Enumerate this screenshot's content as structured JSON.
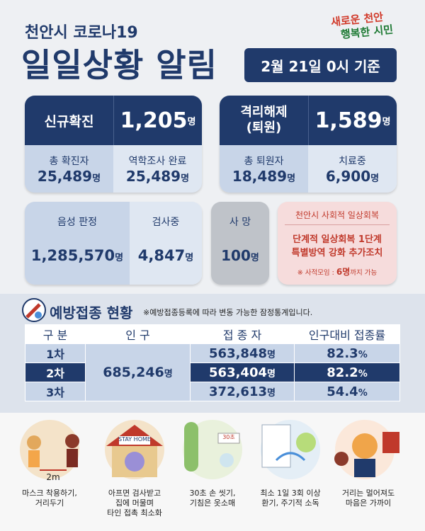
{
  "header": {
    "subtitle": "천안시 코로나19",
    "title": "일일상황 알림",
    "date": "2월 21일 0시 기준",
    "logo": [
      "새로운 천안",
      "행복한 시민"
    ]
  },
  "confirmed": {
    "label": "신규확진",
    "value": "1,205",
    "unit": "명",
    "total_label": "총 확진자",
    "total": "25,489",
    "total_unit": "명",
    "traced_label": "역학조사 완료",
    "traced": "25,489",
    "traced_unit": "명"
  },
  "released": {
    "label": [
      "격리해제",
      "(퇴원)"
    ],
    "value": "1,589",
    "unit": "명",
    "total_label": "총 퇴원자",
    "total": "18,489",
    "total_unit": "명",
    "treating_label": "치료중",
    "treating": "6,900",
    "treating_unit": "명"
  },
  "tests": {
    "negative_label": "음성 판정",
    "negative": "1,285,570",
    "negative_unit": "명",
    "pending_label": "검사중",
    "pending": "4,847",
    "pending_unit": "명"
  },
  "deaths": {
    "label": "사 망",
    "value": "100",
    "unit": "명"
  },
  "recovery": {
    "title": "천안시 사회적 일상회복",
    "lines": [
      "단계적 일상회복 1단계",
      "특별방역 강화 추가조치"
    ],
    "note_prefix": "※ 사적모임 : ",
    "note_number": "6명",
    "note_suffix": "까지 가능"
  },
  "vaccine": {
    "title": "예방접종 현황",
    "note": "※예방접종등록에 따라 변동 가능한 잠정통계입니다.",
    "table": {
      "header": [
        "구 분",
        "인 구",
        "접 종 자",
        "인구대비 접종률"
      ],
      "population": "685,246",
      "population_unit": "명",
      "rows": [
        {
          "dose": "1차",
          "count": "563,848",
          "count_unit": "명",
          "rate": "82.3",
          "rate_unit": "%"
        },
        {
          "dose": "2차",
          "count": "563,404",
          "count_unit": "명",
          "rate": "82.2",
          "rate_unit": "%"
        },
        {
          "dose": "3차",
          "count": "372,613",
          "count_unit": "명",
          "rate": "54.4",
          "rate_unit": "%"
        }
      ]
    }
  },
  "tips": [
    {
      "art": "2m",
      "caption": [
        "마스크 착용하기,",
        "거리두기"
      ]
    },
    {
      "art": "STAY HOME",
      "caption": [
        "아프면 검사받고",
        "집에 머물며",
        "타인 접촉 최소화"
      ]
    },
    {
      "art": "30초",
      "caption": [
        "30초 손 씻기,",
        "기침은 옷소매"
      ]
    },
    {
      "caption": [
        "최소 1일 3회 이상",
        "환기, 주기적 소독"
      ]
    },
    {
      "caption": [
        "거리는 멀어져도",
        "마음은 가까이"
      ]
    }
  ]
}
